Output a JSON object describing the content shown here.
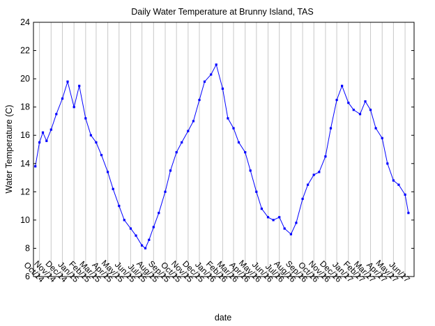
{
  "chart_data": {
    "type": "line",
    "title": "Daily Water Temperature at Brunny Island, TAS",
    "xlabel": "date",
    "ylabel": "Water Temperature (C)",
    "ylim": [
      6,
      24
    ],
    "yticks": [
      6,
      8,
      10,
      12,
      14,
      16,
      18,
      20,
      22,
      24
    ],
    "xlim": [
      "2014-09-15",
      "2017-06-25"
    ],
    "xticks": [
      {
        "date": "2014-10-01",
        "label": "Oct/14"
      },
      {
        "date": "2014-11-01",
        "label": "Nov/14"
      },
      {
        "date": "2014-12-01",
        "label": "Dec/14"
      },
      {
        "date": "2015-01-01",
        "label": "Jan/15"
      },
      {
        "date": "2015-02-01",
        "label": "Feb/15"
      },
      {
        "date": "2015-03-01",
        "label": "Mar/15"
      },
      {
        "date": "2015-04-01",
        "label": "Apr/15"
      },
      {
        "date": "2015-05-01",
        "label": "May/15"
      },
      {
        "date": "2015-06-01",
        "label": "Jun/15"
      },
      {
        "date": "2015-07-01",
        "label": "Jul/15"
      },
      {
        "date": "2015-08-01",
        "label": "Aug/15"
      },
      {
        "date": "2015-09-01",
        "label": "Sep/15"
      },
      {
        "date": "2015-10-01",
        "label": "Oct/15"
      },
      {
        "date": "2015-11-01",
        "label": "Nov/15"
      },
      {
        "date": "2015-12-01",
        "label": "Dec/15"
      },
      {
        "date": "2016-01-01",
        "label": "Jan/16"
      },
      {
        "date": "2016-02-01",
        "label": "Feb/16"
      },
      {
        "date": "2016-03-01",
        "label": "Mar/16"
      },
      {
        "date": "2016-04-01",
        "label": "Apr/16"
      },
      {
        "date": "2016-05-01",
        "label": "May/16"
      },
      {
        "date": "2016-06-01",
        "label": "Jun/16"
      },
      {
        "date": "2016-07-01",
        "label": "Jul/16"
      },
      {
        "date": "2016-08-01",
        "label": "Aug/16"
      },
      {
        "date": "2016-09-01",
        "label": "Sep/16"
      },
      {
        "date": "2016-10-01",
        "label": "Oct/16"
      },
      {
        "date": "2016-11-01",
        "label": "Nov/16"
      },
      {
        "date": "2016-12-01",
        "label": "Dec/16"
      },
      {
        "date": "2017-01-01",
        "label": "Jan/17"
      },
      {
        "date": "2017-02-01",
        "label": "Feb/17"
      },
      {
        "date": "2017-03-01",
        "label": "Mar/17"
      },
      {
        "date": "2017-04-01",
        "label": "Apr/17"
      },
      {
        "date": "2017-05-01",
        "label": "May/17"
      },
      {
        "date": "2017-06-01",
        "label": "Jun/17"
      }
    ],
    "grid": {
      "x": true,
      "y": false
    },
    "series_color": "#0000ff",
    "series": [
      {
        "x": [
          "2014-09-20",
          "2014-10-01",
          "2014-10-10",
          "2014-10-20",
          "2014-11-01",
          "2014-11-15",
          "2014-12-01",
          "2014-12-15",
          "2015-01-01",
          "2015-01-15",
          "2015-02-01",
          "2015-02-15",
          "2015-03-01",
          "2015-03-15",
          "2015-04-01",
          "2015-04-15",
          "2015-05-01",
          "2015-05-15",
          "2015-06-01",
          "2015-06-15",
          "2015-07-01",
          "2015-07-10",
          "2015-07-20",
          "2015-08-01",
          "2015-08-15",
          "2015-09-01",
          "2015-09-15",
          "2015-10-01",
          "2015-10-15",
          "2015-11-01",
          "2015-11-15",
          "2015-12-01",
          "2015-12-15",
          "2016-01-01",
          "2016-01-15",
          "2016-02-01",
          "2016-02-15",
          "2016-03-01",
          "2016-03-15",
          "2016-04-01",
          "2016-04-15",
          "2016-05-01",
          "2016-05-15",
          "2016-06-01",
          "2016-06-15",
          "2016-07-01",
          "2016-07-15",
          "2016-08-01",
          "2016-08-15",
          "2016-09-01",
          "2016-09-15",
          "2016-10-01",
          "2016-10-15",
          "2016-11-01",
          "2016-11-15",
          "2016-12-01",
          "2016-12-15",
          "2017-01-01",
          "2017-01-15",
          "2017-02-01",
          "2017-02-15",
          "2017-03-01",
          "2017-03-15",
          "2017-04-01",
          "2017-04-15",
          "2017-05-01",
          "2017-05-15",
          "2017-06-01",
          "2017-06-10"
        ],
        "y": [
          13.8,
          15.5,
          16.2,
          15.6,
          16.4,
          17.5,
          18.6,
          19.8,
          18.0,
          19.5,
          17.2,
          16.0,
          15.5,
          14.6,
          13.4,
          12.2,
          11.0,
          10.0,
          9.4,
          8.9,
          8.2,
          8.0,
          8.6,
          9.5,
          10.5,
          12.0,
          13.5,
          14.8,
          15.5,
          16.3,
          17.0,
          18.5,
          19.8,
          20.3,
          21.0,
          19.3,
          17.2,
          16.5,
          15.5,
          14.8,
          13.5,
          12.0,
          10.8,
          10.2,
          10.0,
          10.2,
          9.4,
          9.0,
          9.8,
          11.5,
          12.5,
          13.2,
          13.4,
          14.5,
          16.5,
          18.5,
          19.5,
          18.3,
          17.8,
          17.5,
          18.4,
          17.8,
          16.5,
          15.8,
          14.0,
          12.8,
          12.5,
          11.8,
          10.5
        ]
      }
    ]
  }
}
